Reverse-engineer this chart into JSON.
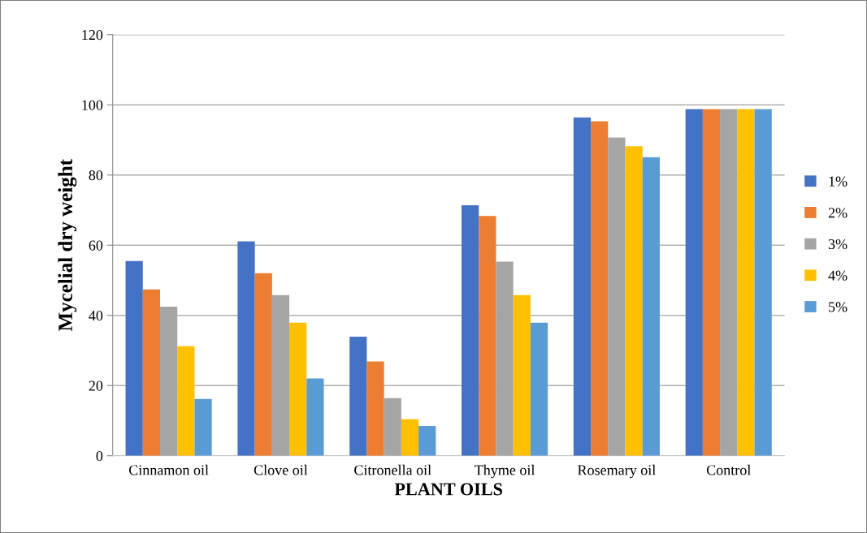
{
  "chart_data": {
    "type": "bar",
    "xlabel": "PLANT OILS",
    "ylabel": "Mycelial dry weight",
    "categories": [
      "Cinnamon oil",
      "Clove oil",
      "Citronella oil",
      "Thyme oil",
      "Rosemary oil",
      "Control"
    ],
    "series": [
      {
        "name": "1%",
        "color": "#4472c4",
        "values": [
          55.5,
          61.1,
          33.9,
          71.4,
          96.4,
          98.8
        ]
      },
      {
        "name": "2%",
        "color": "#ed7d31",
        "values": [
          47.4,
          52.0,
          26.9,
          68.3,
          95.3,
          98.8
        ]
      },
      {
        "name": "3%",
        "color": "#a5a5a5",
        "values": [
          42.5,
          45.8,
          16.4,
          55.3,
          90.7,
          98.8
        ]
      },
      {
        "name": "4%",
        "color": "#ffc000",
        "values": [
          31.2,
          37.9,
          10.4,
          45.8,
          88.2,
          98.8
        ]
      },
      {
        "name": "5%",
        "color": "#5b9bd5",
        "values": [
          16.2,
          22.0,
          8.5,
          37.9,
          85.1,
          98.8
        ]
      }
    ],
    "ylim": [
      0,
      120
    ],
    "yticks": [
      0,
      20,
      40,
      60,
      80,
      100,
      120
    ],
    "grid": "y",
    "legend": "right"
  }
}
